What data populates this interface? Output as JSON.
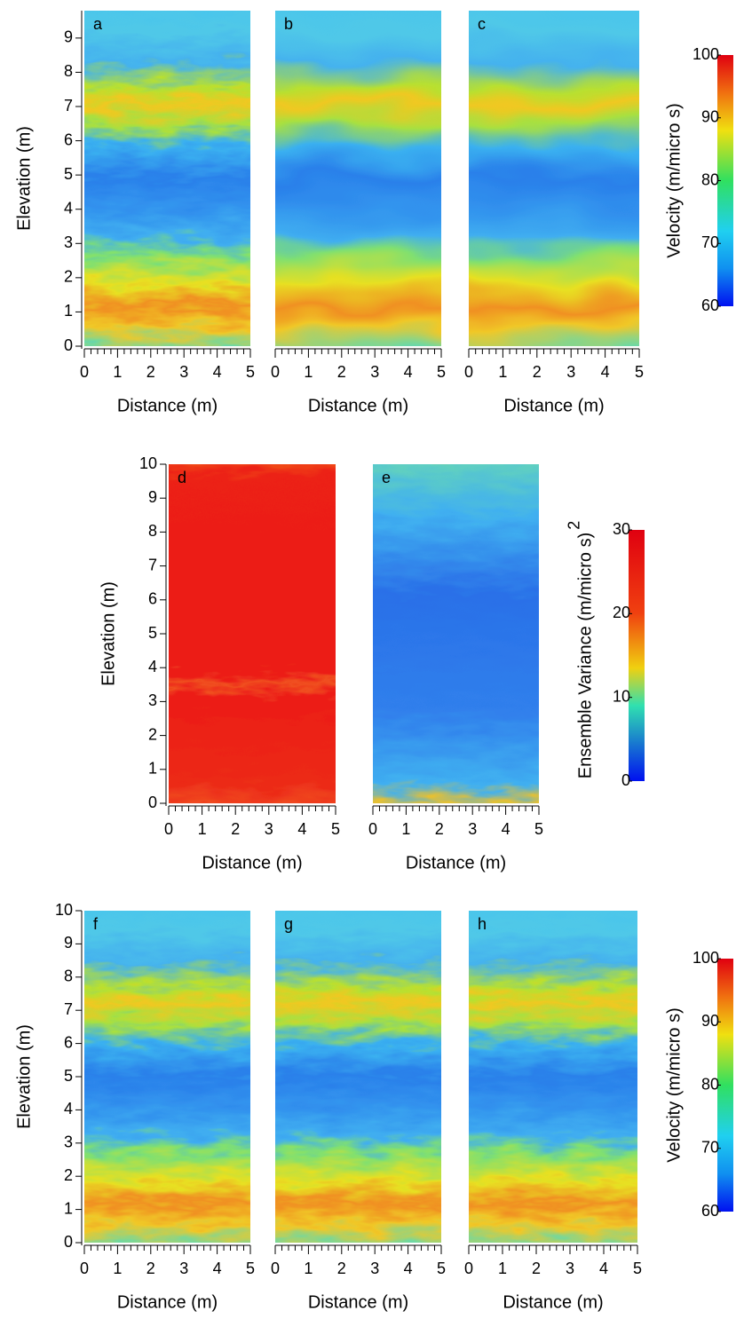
{
  "chart_data": [
    {
      "type": "heatmap",
      "panel_label": "a",
      "colormap": "velocity",
      "texture": "rough",
      "xlabel": "Distance (m)",
      "ylabel": "Elevation (m)",
      "xlim": [
        0,
        5
      ],
      "ylim": [
        0,
        9.8
      ],
      "xticks": [
        0,
        1,
        2,
        3,
        4,
        5
      ],
      "yticks": [
        0,
        1,
        2,
        3,
        4,
        5,
        6,
        7,
        8,
        9
      ]
    },
    {
      "type": "heatmap",
      "panel_label": "b",
      "colormap": "velocity",
      "texture": "smooth",
      "xlabel": "Distance (m)",
      "xlim": [
        0,
        5
      ],
      "ylim": [
        0,
        9.8
      ],
      "xticks": [
        0,
        1,
        2,
        3,
        4,
        5
      ]
    },
    {
      "type": "heatmap",
      "panel_label": "c",
      "colormap": "velocity",
      "texture": "smooth",
      "xlabel": "Distance (m)",
      "xlim": [
        0,
        5
      ],
      "ylim": [
        0,
        9.8
      ],
      "xticks": [
        0,
        1,
        2,
        3,
        4,
        5
      ]
    },
    {
      "type": "heatmap",
      "panel_label": "d",
      "colormap": "variance-high",
      "texture": "rough",
      "xlabel": "Distance (m)",
      "ylabel": "Elevation (m)",
      "xlim": [
        0,
        5
      ],
      "ylim": [
        0,
        10
      ],
      "xticks": [
        0,
        1,
        2,
        3,
        4,
        5
      ],
      "yticks": [
        0,
        1,
        2,
        3,
        4,
        5,
        6,
        7,
        8,
        9,
        10
      ]
    },
    {
      "type": "heatmap",
      "panel_label": "e",
      "colormap": "variance-low",
      "texture": "rough",
      "xlabel": "Distance (m)",
      "xlim": [
        0,
        5
      ],
      "ylim": [
        0,
        10
      ],
      "xticks": [
        0,
        1,
        2,
        3,
        4,
        5
      ]
    },
    {
      "type": "heatmap",
      "panel_label": "f",
      "colormap": "velocity",
      "texture": "rough",
      "xlabel": "Distance (m)",
      "ylabel": "Elevation (m)",
      "xlim": [
        0,
        5
      ],
      "ylim": [
        0,
        10
      ],
      "xticks": [
        0,
        1,
        2,
        3,
        4,
        5
      ],
      "yticks": [
        0,
        1,
        2,
        3,
        4,
        5,
        6,
        7,
        8,
        9,
        10
      ]
    },
    {
      "type": "heatmap",
      "panel_label": "g",
      "colormap": "velocity",
      "texture": "rough",
      "xlabel": "Distance (m)",
      "xlim": [
        0,
        5
      ],
      "ylim": [
        0,
        10
      ],
      "xticks": [
        0,
        1,
        2,
        3,
        4,
        5
      ]
    },
    {
      "type": "heatmap",
      "panel_label": "h",
      "colormap": "velocity",
      "texture": "rough",
      "xlabel": "Distance (m)",
      "xlim": [
        0,
        5
      ],
      "ylim": [
        0,
        10
      ],
      "xticks": [
        0,
        1,
        2,
        3,
        4,
        5
      ]
    },
    {
      "type": "colorbar",
      "colormap": "velocity-bar",
      "label": "Velocity (m/micro s)",
      "ylim": [
        60,
        100
      ],
      "yticks": [
        60,
        70,
        80,
        90,
        100
      ]
    },
    {
      "type": "colorbar",
      "colormap": "variance-bar",
      "label": "Ensemble Variance (m/micro s)",
      "label_superscript": "2",
      "ylim": [
        0,
        30
      ],
      "yticks": [
        0,
        10,
        20,
        30
      ]
    },
    {
      "type": "colorbar",
      "colormap": "velocity-bar",
      "label": "Velocity (m/micro s)",
      "ylim": [
        60,
        100
      ],
      "yticks": [
        60,
        70,
        80,
        90,
        100
      ]
    }
  ]
}
